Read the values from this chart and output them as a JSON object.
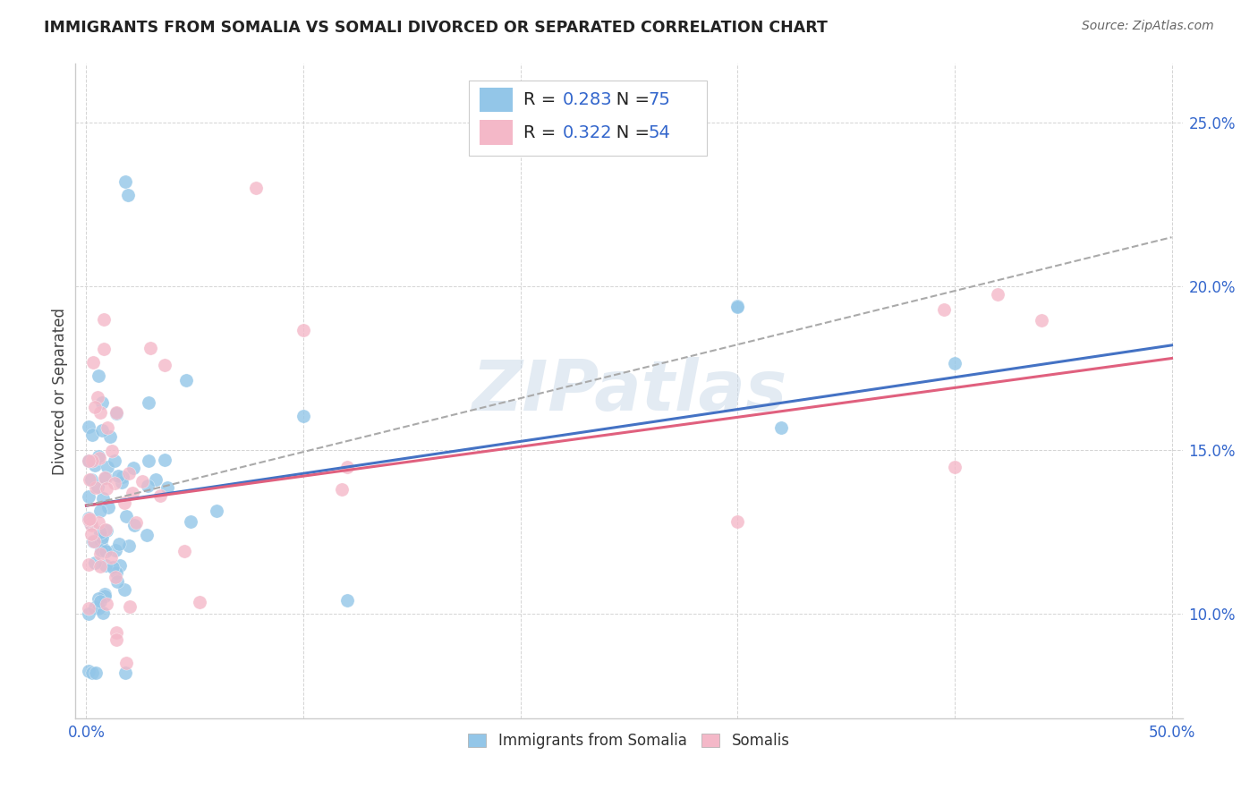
{
  "title": "IMMIGRANTS FROM SOMALIA VS SOMALI DIVORCED OR SEPARATED CORRELATION CHART",
  "source": "Source: ZipAtlas.com",
  "ylabel": "Divorced or Separated",
  "xlim": [
    -0.005,
    0.505
  ],
  "ylim": [
    0.068,
    0.268
  ],
  "xticks_shown": [
    0.0,
    0.5
  ],
  "xtick_labels_shown": [
    "0.0%",
    "50.0%"
  ],
  "xticks_grid": [
    0.0,
    0.1,
    0.2,
    0.3,
    0.4,
    0.5
  ],
  "yticks": [
    0.1,
    0.15,
    0.2,
    0.25
  ],
  "ytick_labels": [
    "10.0%",
    "15.0%",
    "20.0%",
    "25.0%"
  ],
  "legend1_R": "0.283",
  "legend1_N": "75",
  "legend2_R": "0.322",
  "legend2_N": "54",
  "color_blue": "#93c6e8",
  "color_pink": "#f4b8c8",
  "trend_blue": "#4472c4",
  "trend_pink": "#e0607e",
  "trend_dashed_color": "#aaaaaa",
  "watermark": "ZIPatlas",
  "tick_color": "#3366cc",
  "title_color": "#222222",
  "source_color": "#666666",
  "ylabel_color": "#444444",
  "legend_text_color": "#222222",
  "legend_value_color": "#3366cc",
  "blue_trend_start_y": 0.133,
  "blue_trend_end_y": 0.182,
  "pink_trend_start_y": 0.133,
  "pink_trend_end_y": 0.178,
  "dashed_trend_start_y": 0.133,
  "dashed_trend_end_y": 0.215
}
